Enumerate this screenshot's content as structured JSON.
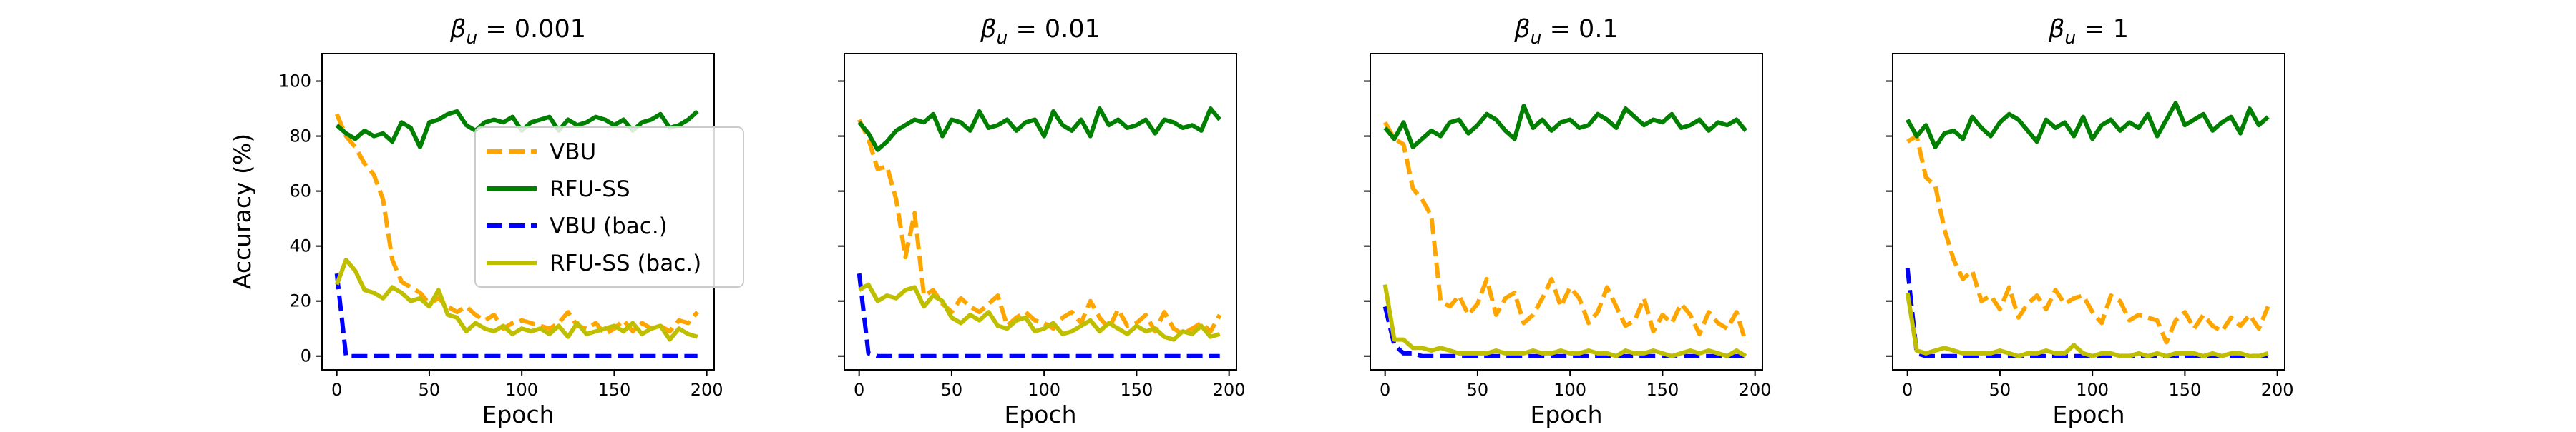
{
  "figure": {
    "ylabel": "Accuracy (%)",
    "xlabel": "Epoch"
  },
  "legend": {
    "placement": "inside first panel, center",
    "entries": [
      {
        "key": "vbu",
        "name": "VBU",
        "color": "#ffa500",
        "dash": true
      },
      {
        "key": "rfuss",
        "name": "RFU-SS",
        "color": "#008000",
        "dash": false
      },
      {
        "key": "vbu_bac",
        "name": "VBU (bac.)",
        "color": "#0000ff",
        "dash": true
      },
      {
        "key": "rfuss_bac",
        "name": "RFU-SS (bac.)",
        "color": "#bfbf00",
        "dash": false
      }
    ]
  },
  "chart_data": [
    {
      "type": "line",
      "title_base": "β",
      "title_sub": "u",
      "title_tail": " = 0.001",
      "xlabel": "Epoch",
      "ylabel": "Accuracy (%)",
      "xlim": [
        -8,
        204
      ],
      "ylim": [
        -5,
        110
      ],
      "xticks": [
        0,
        50,
        100,
        150,
        200
      ],
      "yticks": [
        0,
        20,
        40,
        60,
        80,
        100
      ],
      "x": [
        0,
        5,
        10,
        15,
        20,
        25,
        30,
        35,
        40,
        45,
        50,
        55,
        60,
        65,
        70,
        75,
        80,
        85,
        90,
        95,
        100,
        105,
        110,
        115,
        120,
        125,
        130,
        135,
        140,
        145,
        150,
        155,
        160,
        165,
        170,
        175,
        180,
        185,
        190,
        195
      ],
      "series": [
        {
          "key": "vbu",
          "name": "VBU",
          "values": [
            88,
            80,
            76,
            70,
            66,
            57,
            35,
            27,
            25,
            23,
            19,
            21,
            18,
            16,
            18,
            15,
            13,
            15,
            10,
            12,
            13,
            12,
            11,
            10,
            12,
            16,
            11,
            10,
            12,
            8,
            10,
            13,
            9,
            12,
            10,
            11,
            9,
            13,
            12,
            16
          ]
        },
        {
          "key": "rfuss",
          "name": "RFU-SS",
          "values": [
            84,
            81,
            79,
            82,
            80,
            81,
            78,
            85,
            83,
            76,
            85,
            86,
            88,
            89,
            84,
            82,
            85,
            86,
            85,
            87,
            82,
            85,
            86,
            87,
            82,
            86,
            84,
            85,
            87,
            86,
            84,
            86,
            82,
            85,
            86,
            88,
            83,
            84,
            86,
            89
          ]
        },
        {
          "key": "vbu_bac",
          "name": "VBU (bac.)",
          "values": [
            30,
            0,
            0,
            0,
            0,
            0,
            0,
            0,
            0,
            0,
            0,
            0,
            0,
            0,
            0,
            0,
            0,
            0,
            0,
            0,
            0,
            0,
            0,
            0,
            0,
            0,
            0,
            0,
            0,
            0,
            0,
            0,
            0,
            0,
            0,
            0,
            0,
            0,
            0,
            0
          ]
        },
        {
          "key": "rfuss_bac",
          "name": "RFU-SS (bac.)",
          "values": [
            26,
            35,
            31,
            24,
            23,
            21,
            25,
            23,
            20,
            21,
            18,
            24,
            15,
            14,
            9,
            12,
            10,
            9,
            11,
            8,
            10,
            9,
            10,
            8,
            11,
            7,
            12,
            8,
            9,
            10,
            11,
            9,
            12,
            8,
            10,
            11,
            6,
            10,
            8,
            7
          ]
        }
      ]
    },
    {
      "type": "line",
      "title_base": "β",
      "title_sub": "u",
      "title_tail": " = 0.01",
      "xlabel": "Epoch",
      "ylabel": "",
      "xlim": [
        -8,
        204
      ],
      "ylim": [
        -5,
        110
      ],
      "xticks": [
        0,
        50,
        100,
        150,
        200
      ],
      "yticks": [
        0,
        20,
        40,
        60,
        80,
        100
      ],
      "x": [
        0,
        5,
        10,
        15,
        20,
        25,
        30,
        35,
        40,
        45,
        50,
        55,
        60,
        65,
        70,
        75,
        80,
        85,
        90,
        95,
        100,
        105,
        110,
        115,
        120,
        125,
        130,
        135,
        140,
        145,
        150,
        155,
        160,
        165,
        170,
        175,
        180,
        185,
        190,
        195
      ],
      "series": [
        {
          "key": "vbu",
          "name": "VBU",
          "values": [
            86,
            79,
            68,
            69,
            57,
            36,
            52,
            22,
            24,
            19,
            16,
            21,
            18,
            16,
            19,
            22,
            11,
            14,
            16,
            13,
            12,
            10,
            14,
            16,
            12,
            20,
            14,
            10,
            17,
            11,
            12,
            15,
            9,
            16,
            10,
            8,
            10,
            12,
            9,
            15
          ]
        },
        {
          "key": "rfuss",
          "name": "RFU-SS",
          "values": [
            85,
            81,
            75,
            78,
            82,
            84,
            86,
            85,
            88,
            80,
            86,
            85,
            82,
            89,
            83,
            84,
            86,
            82,
            85,
            86,
            80,
            89,
            84,
            82,
            86,
            80,
            90,
            84,
            86,
            83,
            84,
            86,
            81,
            86,
            85,
            83,
            84,
            82,
            90,
            86
          ]
        },
        {
          "key": "vbu_bac",
          "name": "VBU (bac.)",
          "values": [
            30,
            1,
            0,
            0,
            0,
            0,
            0,
            0,
            0,
            0,
            0,
            0,
            0,
            0,
            0,
            0,
            0,
            0,
            0,
            0,
            0,
            0,
            0,
            0,
            0,
            0,
            0,
            0,
            0,
            0,
            0,
            0,
            0,
            0,
            0,
            0,
            0,
            0,
            0,
            0
          ]
        },
        {
          "key": "rfuss_bac",
          "name": "RFU-SS (bac.)",
          "values": [
            24,
            26,
            20,
            22,
            21,
            24,
            25,
            18,
            22,
            20,
            14,
            12,
            15,
            13,
            16,
            11,
            10,
            13,
            14,
            9,
            10,
            12,
            8,
            9,
            11,
            13,
            9,
            12,
            10,
            8,
            11,
            9,
            10,
            7,
            6,
            9,
            8,
            11,
            7,
            8
          ]
        }
      ]
    },
    {
      "type": "line",
      "title_base": "β",
      "title_sub": "u",
      "title_tail": " = 0.1",
      "xlabel": "Epoch",
      "ylabel": "",
      "xlim": [
        -8,
        204
      ],
      "ylim": [
        -5,
        110
      ],
      "xticks": [
        0,
        50,
        100,
        150,
        200
      ],
      "yticks": [
        0,
        20,
        40,
        60,
        80,
        100
      ],
      "x": [
        0,
        5,
        10,
        15,
        20,
        25,
        30,
        35,
        40,
        45,
        50,
        55,
        60,
        65,
        70,
        75,
        80,
        85,
        90,
        95,
        100,
        105,
        110,
        115,
        120,
        125,
        130,
        135,
        140,
        145,
        150,
        155,
        160,
        165,
        170,
        175,
        180,
        185,
        190,
        195
      ],
      "series": [
        {
          "key": "vbu",
          "name": "VBU",
          "values": [
            85,
            79,
            77,
            61,
            57,
            51,
            20,
            18,
            22,
            15,
            19,
            28,
            15,
            21,
            23,
            12,
            15,
            21,
            28,
            18,
            25,
            21,
            12,
            16,
            25,
            18,
            11,
            13,
            21,
            9,
            15,
            12,
            19,
            15,
            8,
            16,
            12,
            10,
            16,
            5
          ]
        },
        {
          "key": "rfuss",
          "name": "RFU-SS",
          "values": [
            83,
            79,
            85,
            76,
            79,
            82,
            80,
            85,
            86,
            81,
            84,
            88,
            86,
            82,
            79,
            91,
            83,
            86,
            82,
            85,
            86,
            83,
            84,
            88,
            86,
            83,
            90,
            87,
            84,
            86,
            85,
            88,
            83,
            84,
            86,
            82,
            85,
            84,
            86,
            82
          ]
        },
        {
          "key": "vbu_bac",
          "name": "VBU (bac.)",
          "values": [
            18,
            4,
            1,
            1,
            0,
            0,
            0,
            0,
            0,
            0,
            0,
            0,
            0,
            0,
            0,
            0,
            0,
            0,
            0,
            0,
            0,
            0,
            0,
            0,
            0,
            0,
            0,
            0,
            0,
            0,
            0,
            0,
            0,
            0,
            0,
            0,
            0,
            0,
            0,
            0
          ]
        },
        {
          "key": "rfuss_bac",
          "name": "RFU-SS (bac.)",
          "values": [
            26,
            6,
            6,
            3,
            3,
            2,
            3,
            2,
            1,
            1,
            1,
            1,
            2,
            1,
            1,
            1,
            2,
            1,
            1,
            2,
            1,
            1,
            2,
            1,
            1,
            0,
            2,
            1,
            1,
            2,
            1,
            0,
            1,
            2,
            1,
            2,
            1,
            0,
            2,
            0
          ]
        }
      ]
    },
    {
      "type": "line",
      "title_base": "β",
      "title_sub": "u",
      "title_tail": " = 1",
      "xlabel": "Epoch",
      "ylabel": "",
      "xlim": [
        -8,
        204
      ],
      "ylim": [
        -5,
        110
      ],
      "xticks": [
        0,
        50,
        100,
        150,
        200
      ],
      "yticks": [
        0,
        20,
        40,
        60,
        80,
        100
      ],
      "x": [
        0,
        5,
        10,
        15,
        20,
        25,
        30,
        35,
        40,
        45,
        50,
        55,
        60,
        65,
        70,
        75,
        80,
        85,
        90,
        95,
        100,
        105,
        110,
        115,
        120,
        125,
        130,
        135,
        140,
        145,
        150,
        155,
        160,
        165,
        170,
        175,
        180,
        185,
        190,
        195
      ],
      "series": [
        {
          "key": "vbu",
          "name": "VBU",
          "values": [
            78,
            80,
            65,
            62,
            46,
            35,
            28,
            31,
            20,
            22,
            17,
            25,
            14,
            19,
            22,
            17,
            24,
            19,
            21,
            22,
            16,
            12,
            22,
            20,
            13,
            15,
            14,
            13,
            5,
            13,
            16,
            10,
            15,
            11,
            9,
            14,
            11,
            15,
            10,
            18
          ]
        },
        {
          "key": "rfuss",
          "name": "RFU-SS",
          "values": [
            86,
            80,
            84,
            76,
            81,
            82,
            79,
            87,
            83,
            80,
            85,
            88,
            86,
            82,
            78,
            86,
            83,
            85,
            80,
            87,
            79,
            84,
            86,
            82,
            85,
            83,
            88,
            80,
            86,
            92,
            84,
            86,
            88,
            82,
            85,
            87,
            81,
            90,
            84,
            87
          ]
        },
        {
          "key": "vbu_bac",
          "name": "VBU (bac.)",
          "values": [
            32,
            1,
            0,
            0,
            0,
            0,
            0,
            0,
            0,
            0,
            0,
            0,
            0,
            0,
            0,
            0,
            0,
            0,
            0,
            0,
            0,
            0,
            0,
            0,
            0,
            0,
            0,
            0,
            0,
            0,
            0,
            0,
            0,
            0,
            0,
            0,
            0,
            0,
            0,
            0
          ]
        },
        {
          "key": "rfuss_bac",
          "name": "RFU-SS (bac.)",
          "values": [
            23,
            2,
            1,
            2,
            3,
            2,
            1,
            1,
            1,
            1,
            2,
            1,
            0,
            1,
            1,
            2,
            1,
            1,
            4,
            1,
            0,
            1,
            1,
            0,
            0,
            1,
            0,
            1,
            0,
            1,
            1,
            1,
            0,
            1,
            0,
            1,
            1,
            0,
            0,
            1
          ]
        }
      ]
    }
  ]
}
